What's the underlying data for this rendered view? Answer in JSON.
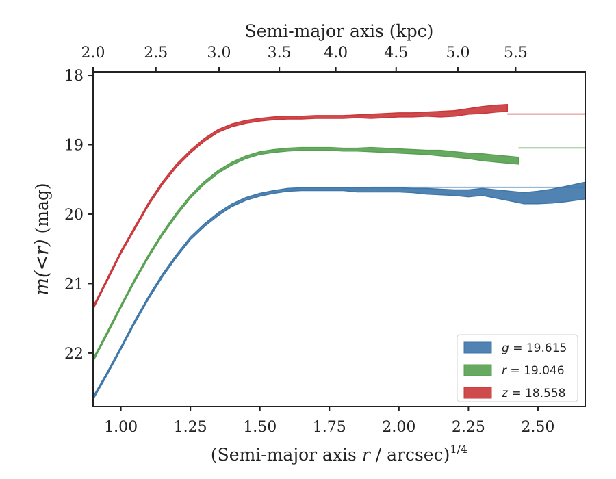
{
  "chart_data": {
    "type": "line",
    "xlabel_main": "(Semi-major axis",
    "xlabel_var": "r",
    "xlabel_unit": " / arcsec)",
    "xlabel_exp": "1/4",
    "xlabel_top": "Semi-major axis (kpc)",
    "ylabel_main": "m(<r)",
    "ylabel_unit": " (mag)",
    "xlim": [
      0.9,
      2.67
    ],
    "ylim": [
      22.77,
      17.95
    ],
    "y_inverted": true,
    "x_ticks": [
      "1.00",
      "1.25",
      "1.50",
      "1.75",
      "2.00",
      "2.25",
      "2.50"
    ],
    "y_ticks": [
      "18",
      "19",
      "20",
      "21",
      "22"
    ],
    "top_ticks": [
      "2.0",
      "2.5",
      "3.0",
      "3.5",
      "4.0",
      "4.5",
      "5.0",
      "5.5"
    ],
    "top_tick_positions": [
      0.9,
      1.126,
      1.353,
      1.57,
      1.773,
      1.99,
      2.212,
      2.42
    ],
    "legend_position": "lower right",
    "series": [
      {
        "name": "g = 19.615",
        "band": "g",
        "value": "19.615",
        "color": "#3d76a8",
        "asymptote": 19.615,
        "x": [
          0.9,
          0.95,
          1.0,
          1.05,
          1.1,
          1.15,
          1.2,
          1.25,
          1.3,
          1.35,
          1.4,
          1.45,
          1.5,
          1.55,
          1.6,
          1.65,
          1.7,
          1.75,
          1.8,
          1.85,
          1.9,
          1.95,
          2.0,
          2.05,
          2.1,
          2.15,
          2.2,
          2.25,
          2.3,
          2.35,
          2.4,
          2.45,
          2.5,
          2.55,
          2.6,
          2.67
        ],
        "y": [
          22.65,
          22.3,
          21.93,
          21.55,
          21.2,
          20.88,
          20.6,
          20.35,
          20.16,
          20.0,
          19.87,
          19.78,
          19.72,
          19.68,
          19.65,
          19.64,
          19.64,
          19.64,
          19.64,
          19.65,
          19.65,
          19.65,
          19.65,
          19.66,
          19.67,
          19.68,
          19.69,
          19.7,
          19.68,
          19.71,
          19.74,
          19.77,
          19.76,
          19.74,
          19.71,
          19.66
        ],
        "width": [
          0.02,
          0.02,
          0.02,
          0.02,
          0.02,
          0.02,
          0.02,
          0.02,
          0.02,
          0.02,
          0.02,
          0.02,
          0.02,
          0.02,
          0.02,
          0.02,
          0.02,
          0.02,
          0.02,
          0.03,
          0.03,
          0.03,
          0.03,
          0.03,
          0.04,
          0.04,
          0.04,
          0.05,
          0.05,
          0.06,
          0.07,
          0.08,
          0.09,
          0.1,
          0.11,
          0.12
        ]
      },
      {
        "name": "r = 19.046",
        "band": "r",
        "value": "19.046",
        "color": "#56a050",
        "asymptote": 19.046,
        "end_x": 2.43,
        "x": [
          0.9,
          0.95,
          1.0,
          1.05,
          1.1,
          1.15,
          1.2,
          1.25,
          1.3,
          1.35,
          1.4,
          1.45,
          1.5,
          1.55,
          1.6,
          1.65,
          1.7,
          1.75,
          1.8,
          1.85,
          1.9,
          1.95,
          2.0,
          2.05,
          2.1,
          2.15,
          2.2,
          2.25,
          2.3,
          2.35,
          2.43
        ],
        "y": [
          22.1,
          21.72,
          21.33,
          20.95,
          20.6,
          20.28,
          20.0,
          19.75,
          19.55,
          19.39,
          19.27,
          19.18,
          19.12,
          19.09,
          19.07,
          19.06,
          19.06,
          19.06,
          19.07,
          19.07,
          19.07,
          19.08,
          19.09,
          19.1,
          19.11,
          19.12,
          19.14,
          19.16,
          19.18,
          19.2,
          19.23
        ],
        "width": [
          0.02,
          0.02,
          0.02,
          0.02,
          0.02,
          0.02,
          0.02,
          0.02,
          0.02,
          0.02,
          0.02,
          0.02,
          0.02,
          0.02,
          0.02,
          0.02,
          0.02,
          0.02,
          0.02,
          0.02,
          0.03,
          0.03,
          0.03,
          0.03,
          0.03,
          0.04,
          0.04,
          0.04,
          0.05,
          0.05,
          0.05
        ]
      },
      {
        "name": "z = 18.558",
        "band": "z",
        "value": "18.558",
        "color": "#c9363a",
        "asymptote": 18.558,
        "end_x": 2.39,
        "x": [
          0.9,
          0.95,
          1.0,
          1.05,
          1.1,
          1.15,
          1.2,
          1.25,
          1.3,
          1.35,
          1.4,
          1.45,
          1.5,
          1.55,
          1.6,
          1.65,
          1.7,
          1.75,
          1.8,
          1.85,
          1.9,
          1.95,
          2.0,
          2.05,
          2.1,
          2.15,
          2.2,
          2.25,
          2.3,
          2.35,
          2.39
        ],
        "y": [
          21.35,
          20.95,
          20.55,
          20.2,
          19.85,
          19.55,
          19.3,
          19.1,
          18.93,
          18.8,
          18.72,
          18.67,
          18.64,
          18.62,
          18.61,
          18.61,
          18.6,
          18.6,
          18.6,
          18.59,
          18.59,
          18.58,
          18.57,
          18.57,
          18.56,
          18.56,
          18.55,
          18.52,
          18.5,
          18.48,
          18.47
        ],
        "width": [
          0.02,
          0.02,
          0.02,
          0.02,
          0.02,
          0.02,
          0.02,
          0.02,
          0.02,
          0.02,
          0.02,
          0.02,
          0.02,
          0.02,
          0.02,
          0.02,
          0.02,
          0.02,
          0.02,
          0.02,
          0.03,
          0.03,
          0.03,
          0.03,
          0.03,
          0.04,
          0.04,
          0.04,
          0.05,
          0.05,
          0.05
        ]
      }
    ]
  }
}
